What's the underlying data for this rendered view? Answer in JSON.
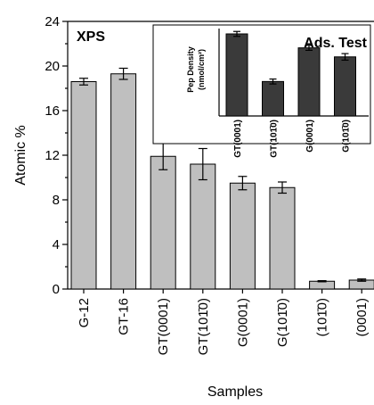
{
  "chart_data": [
    {
      "type": "bar",
      "title": "XPS",
      "xlabel": "Samples",
      "ylabel": "Atomic %",
      "ylim": [
        0,
        24
      ],
      "yticks": [
        "0",
        "4",
        "8",
        "12",
        "16",
        "20",
        "24"
      ],
      "categories": [
        "G-12",
        "GT-16",
        "GT(0001)",
        "GT(101̄0)",
        "G(0001)",
        "G(101̄0)",
        "(101̄0)",
        "(0001)"
      ],
      "values": [
        18.6,
        19.3,
        11.9,
        11.2,
        9.5,
        9.1,
        0.7,
        0.8
      ],
      "errors": [
        0.3,
        0.5,
        1.2,
        1.4,
        0.6,
        0.5,
        0.05,
        0.1
      ],
      "colors": {
        "bar": "#bfbfbf"
      }
    },
    {
      "type": "bar",
      "title": "Ads. Test",
      "ylabel": "Pep Density",
      "ylabel_unit": "(nmol/cm²)",
      "categories": [
        "GT(0001)",
        "GT(101̄0)",
        "G(0001)",
        "G(101̄0)"
      ],
      "values": [
        1.0,
        0.42,
        0.83,
        0.72
      ],
      "errors": [
        0.03,
        0.03,
        0.03,
        0.04
      ],
      "colors": {
        "bar": "#3a3a3a"
      }
    }
  ]
}
